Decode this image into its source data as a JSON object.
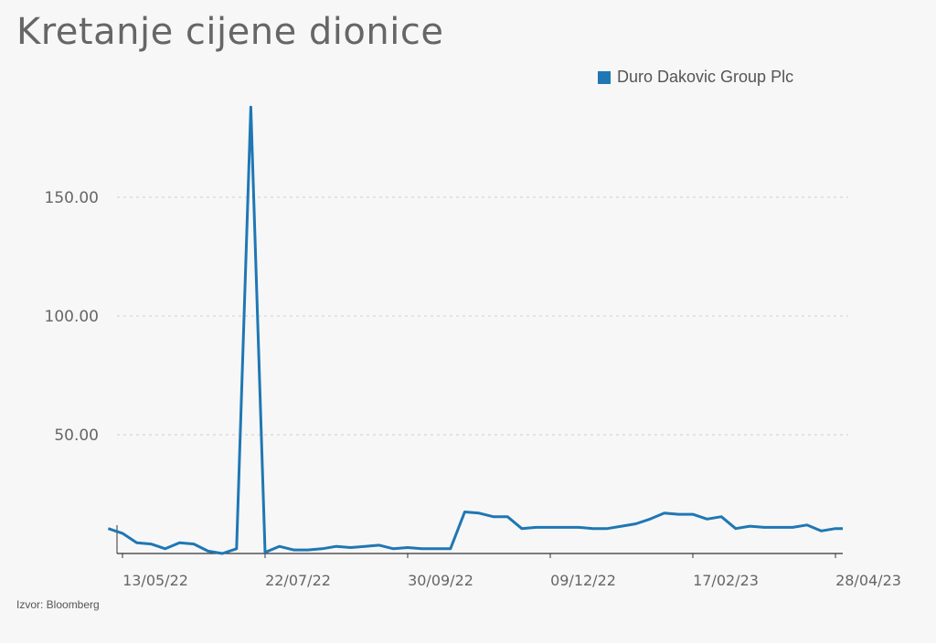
{
  "chart_data": {
    "type": "line",
    "title": "Kretanje cijene dionice",
    "source": "Izvor: Bloomberg",
    "legend_position": "top-right",
    "grid": true,
    "ylim": [
      0,
      190
    ],
    "yticks": [
      {
        "value": 50,
        "label": "50.00"
      },
      {
        "value": 100,
        "label": "100.00"
      },
      {
        "value": 150,
        "label": "150.00"
      }
    ],
    "xticks": [
      "13/05/22",
      "22/07/22",
      "30/09/22",
      "09/12/22",
      "17/02/23",
      "28/04/23"
    ],
    "x_range": [
      "2022-05-13",
      "2023-04-28"
    ],
    "series": [
      {
        "name": "Duro Dakovic Group Plc",
        "color": "#1f77b4",
        "points": [
          [
            "2022-05-06",
            10.5
          ],
          [
            "2022-05-13",
            8.5
          ],
          [
            "2022-05-20",
            4.5
          ],
          [
            "2022-05-27",
            4.0
          ],
          [
            "2022-06-03",
            2.0
          ],
          [
            "2022-06-10",
            4.5
          ],
          [
            "2022-06-17",
            4.0
          ],
          [
            "2022-06-24",
            1.0
          ],
          [
            "2022-07-01",
            0.0
          ],
          [
            "2022-07-08",
            2.0
          ],
          [
            "2022-07-15",
            188.0
          ],
          [
            "2022-07-22",
            0.5
          ],
          [
            "2022-07-29",
            3.0
          ],
          [
            "2022-08-05",
            1.5
          ],
          [
            "2022-08-12",
            1.5
          ],
          [
            "2022-08-19",
            2.0
          ],
          [
            "2022-08-26",
            3.0
          ],
          [
            "2022-09-02",
            2.5
          ],
          [
            "2022-09-09",
            3.0
          ],
          [
            "2022-09-16",
            3.5
          ],
          [
            "2022-09-23",
            2.0
          ],
          [
            "2022-09-30",
            2.5
          ],
          [
            "2022-10-07",
            2.0
          ],
          [
            "2022-10-14",
            2.0
          ],
          [
            "2022-10-21",
            2.0
          ],
          [
            "2022-10-28",
            17.5
          ],
          [
            "2022-11-04",
            17.0
          ],
          [
            "2022-11-11",
            15.5
          ],
          [
            "2022-11-18",
            15.5
          ],
          [
            "2022-11-25",
            10.5
          ],
          [
            "2022-12-02",
            11.0
          ],
          [
            "2022-12-09",
            11.0
          ],
          [
            "2022-12-16",
            11.0
          ],
          [
            "2022-12-23",
            11.0
          ],
          [
            "2022-12-30",
            10.5
          ],
          [
            "2023-01-06",
            10.5
          ],
          [
            "2023-01-13",
            11.5
          ],
          [
            "2023-01-20",
            12.5
          ],
          [
            "2023-01-27",
            14.5
          ],
          [
            "2023-02-03",
            17.0
          ],
          [
            "2023-02-10",
            16.5
          ],
          [
            "2023-02-17",
            16.5
          ],
          [
            "2023-02-24",
            14.5
          ],
          [
            "2023-03-03",
            15.5
          ],
          [
            "2023-03-10",
            10.5
          ],
          [
            "2023-03-17",
            11.5
          ],
          [
            "2023-03-24",
            11.0
          ],
          [
            "2023-03-31",
            11.0
          ],
          [
            "2023-04-07",
            11.0
          ],
          [
            "2023-04-14",
            12.0
          ],
          [
            "2023-04-21",
            9.5
          ],
          [
            "2023-04-28",
            10.5
          ],
          [
            "2023-05-05",
            10.5
          ]
        ]
      }
    ]
  }
}
